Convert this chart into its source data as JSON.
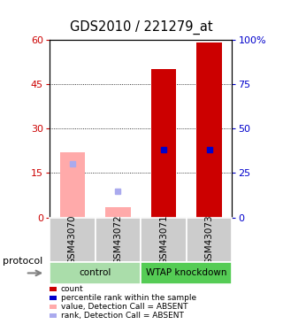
{
  "title": "GDS2010 / 221279_at",
  "samples": [
    "GSM43070",
    "GSM43072",
    "GSM43071",
    "GSM43073"
  ],
  "bar_values": [
    22.0,
    3.5,
    50.0,
    59.0
  ],
  "bar_colors": [
    "#ffaaaa",
    "#ffaaaa",
    "#cc0000",
    "#cc0000"
  ],
  "dot_values": [
    30.0,
    15.0,
    38.0,
    38.0
  ],
  "dot_colors": [
    "#aaaaee",
    "#aaaaee",
    "#0000cc",
    "#0000cc"
  ],
  "ylim_left": [
    0,
    60
  ],
  "ylim_right": [
    0,
    100
  ],
  "yticks_left": [
    0,
    15,
    30,
    45,
    60
  ],
  "yticks_right": [
    0,
    25,
    50,
    75,
    100
  ],
  "ytick_right_labels": [
    "0",
    "25",
    "50",
    "75",
    "100%"
  ],
  "groups": [
    {
      "label": "control",
      "samples": [
        0,
        1
      ],
      "color": "#aaddaa"
    },
    {
      "label": "WTAP knockdown",
      "samples": [
        2,
        3
      ],
      "color": "#55cc55"
    }
  ],
  "legend_items": [
    {
      "label": "count",
      "color": "#cc0000"
    },
    {
      "label": "percentile rank within the sample",
      "color": "#0000cc"
    },
    {
      "label": "value, Detection Call = ABSENT",
      "color": "#ffaaaa"
    },
    {
      "label": "rank, Detection Call = ABSENT",
      "color": "#aaaaee"
    }
  ],
  "bar_width": 0.55,
  "dot_size": 5,
  "axis_color_left": "#cc0000",
  "axis_color_right": "#0000cc"
}
